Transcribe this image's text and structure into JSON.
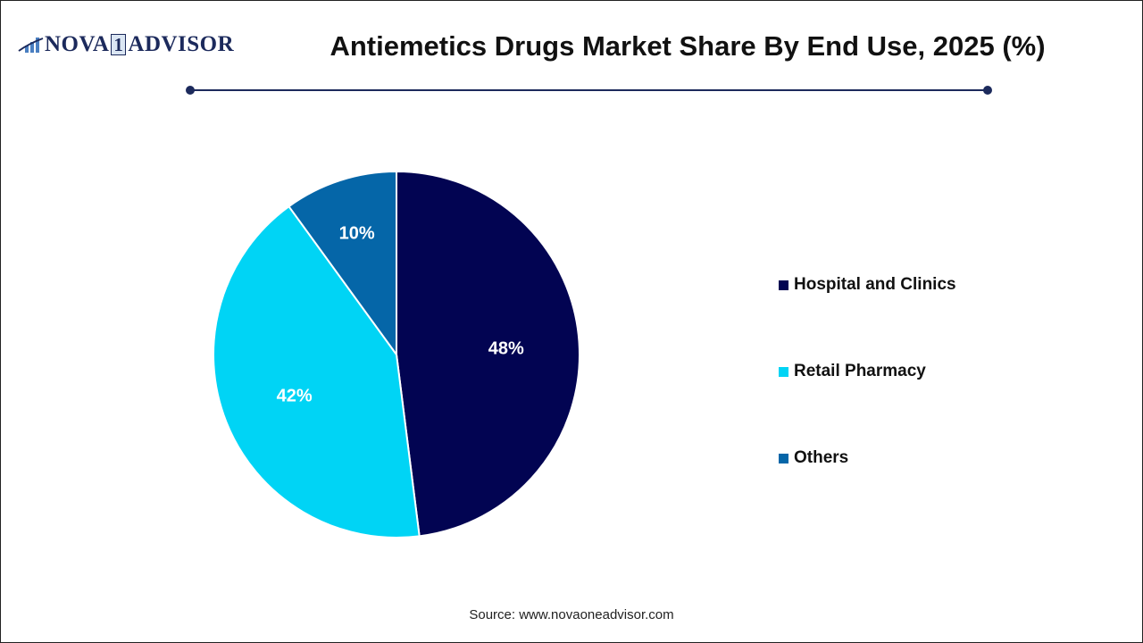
{
  "logo": {
    "text_left": "NOVA",
    "text_box": "1",
    "text_right": "ADVISOR"
  },
  "header": {
    "title": "Antiemetics Drugs Market Share By End Use, 2025 (%)"
  },
  "chart_data": {
    "type": "pie",
    "title": "Antiemetics Drugs Market Share By End Use, 2025 (%)",
    "categories": [
      "Hospital and Clinics",
      "Retail Pharmacy",
      "Others"
    ],
    "values": [
      48,
      42,
      10
    ],
    "labels": [
      "48%",
      "42%",
      "10%"
    ],
    "colors": [
      "#020452",
      "#00d4f5",
      "#0566a8"
    ],
    "legend_position": "right"
  },
  "footer": {
    "source": "Source: www.novaoneadvisor.com"
  }
}
